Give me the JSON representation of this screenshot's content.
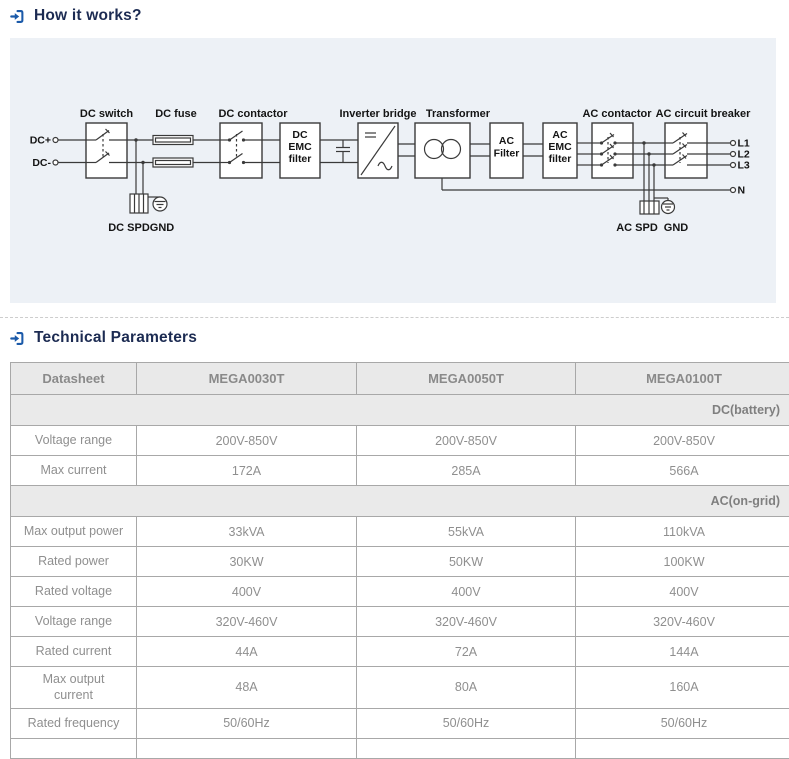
{
  "page": {
    "section1_title": "How it works?",
    "section2_title": "Technical Parameters"
  },
  "diagram": {
    "terminals": {
      "dc_plus": "DC+",
      "dc_minus": "DC-",
      "l1": "L1",
      "l2": "L2",
      "l3": "L3",
      "n": "N"
    },
    "components": {
      "dc_switch": "DC switch",
      "dc_fuse": "DC fuse",
      "dc_contactor": "DC contactor",
      "dc_emc_filter": [
        "DC",
        "EMC",
        "filter"
      ],
      "inverter_bridge": "Inverter bridge",
      "transformer": "Transformer",
      "ac_filter": [
        "AC",
        "Filter"
      ],
      "ac_emc_filter": [
        "AC",
        "EMC",
        "filter"
      ],
      "ac_contactor": "AC contactor",
      "ac_circuit_breaker": "AC circuit breaker",
      "dc_spd": "DC SPD",
      "gnd_dc": "GND",
      "ac_spd": "AC SPD",
      "gnd_ac": "GND"
    }
  },
  "table": {
    "header": [
      "Datasheet",
      "MEGA0030T",
      "MEGA0050T",
      "MEGA0100T"
    ],
    "sections": [
      {
        "label": "DC(battery)",
        "rows": [
          {
            "label": [
              "Voltage range"
            ],
            "values": [
              "200V-850V",
              "200V-850V",
              "200V-850V"
            ]
          },
          {
            "label": [
              "Max current"
            ],
            "values": [
              "172A",
              "285A",
              "566A"
            ]
          }
        ]
      },
      {
        "label": "AC(on-grid)",
        "rows": [
          {
            "label": [
              "Max output power"
            ],
            "values": [
              "33kVA",
              "55kVA",
              "110kVA"
            ]
          },
          {
            "label": [
              "Rated power"
            ],
            "values": [
              "30KW",
              "50KW",
              "100KW"
            ]
          },
          {
            "label": [
              "Rated voltage"
            ],
            "values": [
              "400V",
              "400V",
              "400V"
            ]
          },
          {
            "label": [
              "Voltage range"
            ],
            "values": [
              "320V-460V",
              "320V-460V",
              "320V-460V"
            ]
          },
          {
            "label": [
              "Rated current"
            ],
            "values": [
              "44A",
              "72A",
              "144A"
            ]
          },
          {
            "label": [
              "Max output",
              "current"
            ],
            "values": [
              "48A",
              "80A",
              "160A"
            ]
          },
          {
            "label": [
              "Rated frequency"
            ],
            "values": [
              "50/60Hz",
              "50/60Hz",
              "50/60Hz"
            ]
          }
        ]
      }
    ]
  },
  "colors": {
    "accent_blue": "#1b5aa9",
    "heading_navy": "#1c2b52",
    "panel_bg": "#edf1f6",
    "table_border": "#a8a8a8",
    "header_row_bg": "#e9e9e9",
    "cell_text": "#8f8f8f"
  }
}
